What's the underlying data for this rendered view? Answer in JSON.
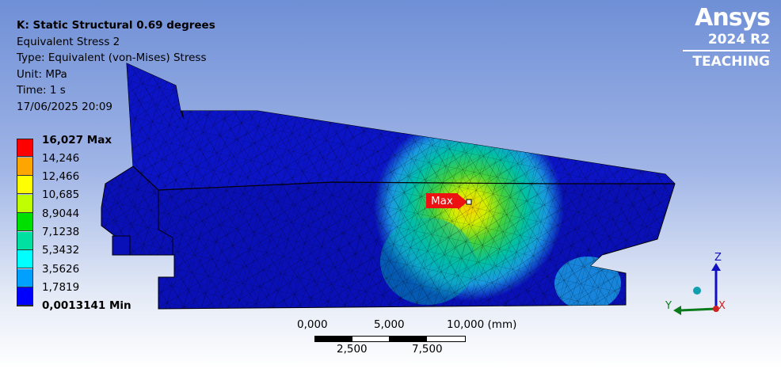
{
  "result_info": {
    "title": "K: Static Structural 0.69 degrees",
    "result_name": "Equivalent Stress 2",
    "type": "Type: Equivalent (von-Mises) Stress",
    "unit": "Unit: MPa",
    "time": "Time: 1 s",
    "date": "17/06/2025 20:09"
  },
  "legend": {
    "labels": [
      "16,027 Max",
      "14,246",
      "12,466",
      "10,685",
      "8,9044",
      "7,1238",
      "5,3432",
      "3,5626",
      "1,7819",
      "0,0013141 Min"
    ],
    "colors": [
      "#ff0000",
      "#ffa500",
      "#ffff00",
      "#c0ff00",
      "#00e000",
      "#00e0a0",
      "#00ffff",
      "#00a0ff",
      "#0000ff"
    ]
  },
  "max_probe": {
    "label": "Max"
  },
  "scale_bar": {
    "top_labels": [
      "0,000",
      "5,000",
      "10,000 (mm)"
    ],
    "bottom_labels": [
      "2,500",
      "7,500"
    ]
  },
  "logo": {
    "brand": "Ansys",
    "version": "2024 R2",
    "edition": "TEACHING"
  },
  "triad": {
    "z_label": "Z",
    "y_label": "Y",
    "x_label": "X"
  }
}
